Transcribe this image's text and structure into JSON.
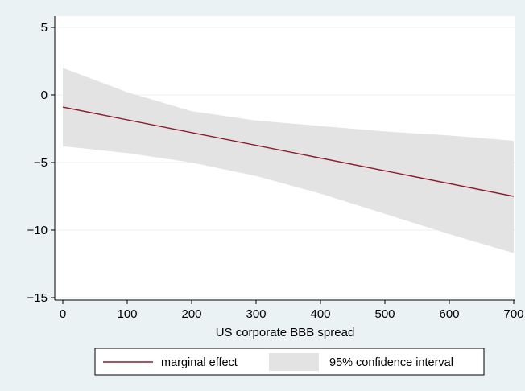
{
  "chart_data": {
    "type": "line",
    "title": "",
    "xlabel": "US corporate BBB spread",
    "ylabel": "",
    "xlim": [
      0,
      700
    ],
    "ylim": [
      -15,
      5
    ],
    "xticks": [
      0,
      100,
      200,
      300,
      400,
      500,
      600,
      700
    ],
    "yticks": [
      5,
      0,
      -5,
      -10,
      -15
    ],
    "xtick_labels": [
      "0",
      "100",
      "200",
      "300",
      "400",
      "500",
      "600",
      "700"
    ],
    "ytick_labels": [
      "5",
      "0",
      "−5",
      "−10",
      "−15"
    ],
    "grid": true,
    "legend_position": "bottom",
    "series": [
      {
        "name": "marginal effect",
        "type": "line",
        "color": "#8b1a2b",
        "x": [
          0,
          700
        ],
        "y": [
          -0.9,
          -7.5
        ]
      },
      {
        "name": "95% confidence interval",
        "type": "band",
        "color": "#e3e3e3",
        "x": [
          0,
          100,
          200,
          300,
          400,
          500,
          600,
          700
        ],
        "upper": [
          2.0,
          0.2,
          -1.2,
          -1.9,
          -2.3,
          -2.7,
          -3.0,
          -3.4
        ],
        "lower": [
          -3.8,
          -4.3,
          -5.0,
          -6.0,
          -7.3,
          -8.8,
          -10.3,
          -11.7
        ]
      }
    ]
  }
}
